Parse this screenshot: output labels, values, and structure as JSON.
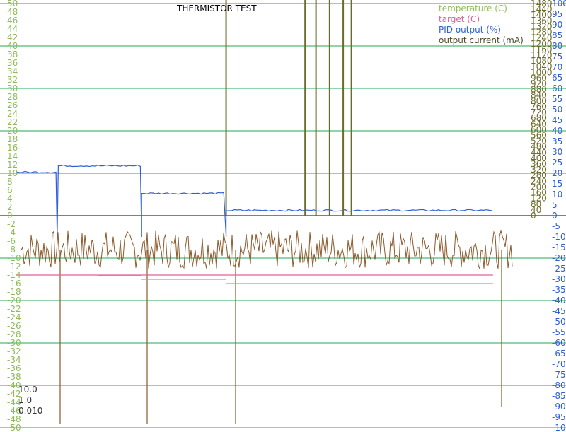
{
  "chart_data": {
    "type": "line",
    "title": "THERMISTOR TEST",
    "grid": true,
    "legend_position": "top-right",
    "colors": {
      "temperature": "#8fbc5a",
      "target": "#e0609a",
      "pid": "#2e5fd8",
      "current": "#6b6b2a",
      "noise": "#8b5a2b",
      "grid": "#22aa55",
      "zero": "#000000"
    },
    "axes": {
      "left": {
        "label": "temperature (C)",
        "range": [
          -50,
          50
        ],
        "ticks": [
          "50",
          "48",
          "46",
          "44",
          "42",
          "40",
          "38",
          "36",
          "34",
          "32",
          "30",
          "28",
          "26",
          "24",
          "22",
          "20",
          "18",
          "16",
          "14",
          "12",
          "10",
          "8",
          "6",
          "4",
          "2",
          "0",
          "-2",
          "-4",
          "-6",
          "-8",
          "-10",
          "-12",
          "-14",
          "-16",
          "-18",
          "-20",
          "-22",
          "-24",
          "-26",
          "-28",
          "-30",
          "-32",
          "-34",
          "-36",
          "-38",
          "-40",
          "-42",
          "-44",
          "-46",
          "-48",
          "-50"
        ],
        "color": "#8fbc5a"
      },
      "right_inner": {
        "label": "output current (mA)",
        "range": [
          0,
          1480
        ],
        "ticks": [
          "1480",
          "1440",
          "1400",
          "1360",
          "1320",
          "1280",
          "1240",
          "1200",
          "1160",
          "1120",
          "1080",
          "1040",
          "1000",
          "960",
          "920",
          "880",
          "840",
          "800",
          "760",
          "720",
          "680",
          "640",
          "600",
          "560",
          "520",
          "480",
          "440",
          "400",
          "360",
          "320",
          "280",
          "240",
          "200",
          "160",
          "120",
          "80",
          "40",
          "0"
        ],
        "color": "#6b6b2a"
      },
      "right_outer": {
        "label": "PID output (%)",
        "range": [
          -100,
          100
        ],
        "ticks": [
          "100",
          "95",
          "90",
          "85",
          "80",
          "75",
          "70",
          "65",
          "60",
          "55",
          "50",
          "45",
          "40",
          "35",
          "30",
          "25",
          "20",
          "15",
          "10",
          "5",
          "0",
          "-5",
          "-10",
          "-15",
          "-20",
          "-25",
          "-30",
          "-35",
          "-40",
          "-45",
          "-50",
          "-55",
          "-60",
          "-65",
          "-70",
          "-75",
          "-80",
          "-85",
          "-90",
          "-95",
          "-100"
        ],
        "color": "#2e5fd8"
      }
    },
    "series": [
      {
        "name": "temperature (C)",
        "key": "temperature",
        "axis": "left",
        "segments": [
          {
            "x": [
              0.18,
              0.26
            ],
            "y": -14.2
          },
          {
            "x": [
              0.26,
              0.415
            ],
            "y": -15.0
          },
          {
            "x": [
              0.415,
              0.905
            ],
            "y": -16.0
          }
        ]
      },
      {
        "name": "target (C)",
        "key": "target",
        "axis": "left",
        "segments": [
          {
            "x": [
              0.03,
              0.905
            ],
            "y": -14.0
          }
        ]
      },
      {
        "name": "PID output (%)",
        "key": "pid",
        "axis": "right_outer",
        "segments": [
          {
            "x": [
              0.03,
              0.105
            ],
            "y": 20.5
          },
          {
            "x": [
              0.107,
              0.26
            ],
            "y": 23.5
          },
          {
            "x": [
              0.26,
              0.415
            ],
            "y": 10.5
          },
          {
            "x": [
              0.415,
              0.905
            ],
            "y": 2.5
          }
        ]
      },
      {
        "name": "output current (mA)",
        "key": "current",
        "axis": "right_inner",
        "spikes_x": [
          0.415,
          0.56,
          0.58,
          0.605,
          0.63,
          0.645
        ]
      }
    ]
  },
  "gains": [
    "10.0",
    "1.0",
    "0.010"
  ]
}
